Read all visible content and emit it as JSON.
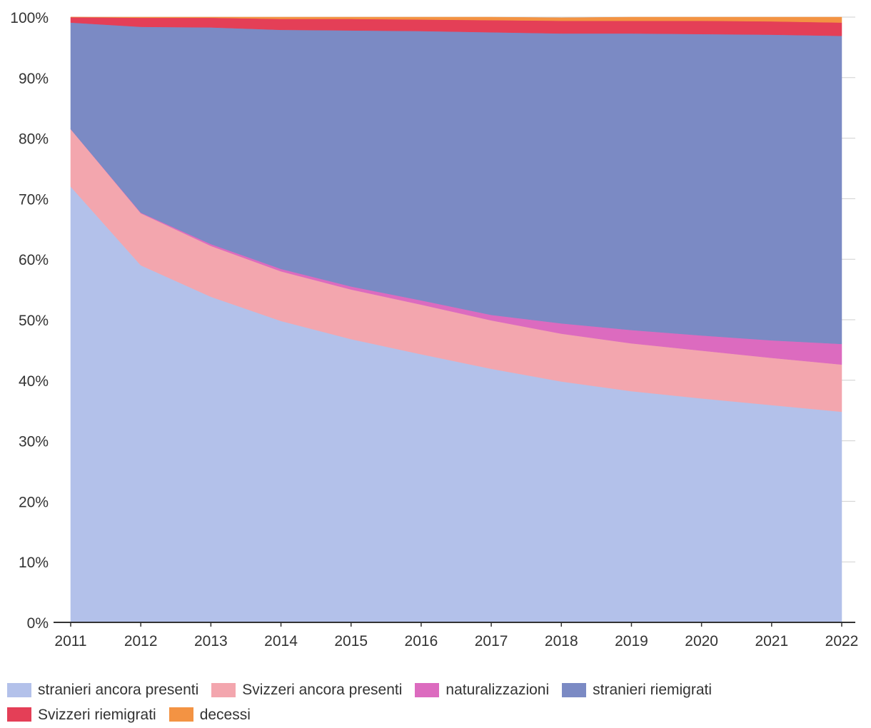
{
  "chart_data": {
    "type": "area",
    "stacked": true,
    "title": "",
    "xlabel": "",
    "ylabel": "",
    "ylim": [
      0,
      100
    ],
    "y_ticks": [
      0,
      10,
      20,
      30,
      40,
      50,
      60,
      70,
      80,
      90,
      100
    ],
    "y_tick_labels": [
      "0%",
      "10%",
      "20%",
      "30%",
      "40%",
      "50%",
      "60%",
      "70%",
      "80%",
      "90%",
      "100%"
    ],
    "x": [
      "2011",
      "2012",
      "2013",
      "2014",
      "2015",
      "2016",
      "2017",
      "2018",
      "2019",
      "2020",
      "2021",
      "2022"
    ],
    "grid": true,
    "legend_position": "bottom",
    "series": [
      {
        "name": "stranieri ancora presenti",
        "color": "#b3c1ea",
        "values": [
          72.0,
          59.0,
          53.8,
          49.8,
          46.8,
          44.3,
          41.9,
          39.8,
          38.2,
          37.0,
          35.9,
          34.8
        ]
      },
      {
        "name": "Svizzeri ancora presenti",
        "color": "#f3a6ae",
        "values": [
          9.5,
          8.6,
          8.4,
          8.2,
          8.2,
          8.2,
          8.0,
          7.9,
          7.9,
          7.9,
          7.8,
          7.8
        ]
      },
      {
        "name": "naturalizzazioni",
        "color": "#dc6bbf",
        "values": [
          0.0,
          0.1,
          0.3,
          0.4,
          0.5,
          0.7,
          0.9,
          1.7,
          2.2,
          2.5,
          2.9,
          3.4
        ]
      },
      {
        "name": "stranieri riemigrati",
        "color": "#7b8ac4",
        "values": [
          17.6,
          30.7,
          35.8,
          39.5,
          42.3,
          44.5,
          46.7,
          47.9,
          49.0,
          49.8,
          50.5,
          50.9
        ]
      },
      {
        "name": "Svizzeri riemigrati",
        "color": "#e43f57",
        "values": [
          0.9,
          1.5,
          1.6,
          1.8,
          1.9,
          1.9,
          2.0,
          2.1,
          2.1,
          2.2,
          2.2,
          2.2
        ]
      },
      {
        "name": "decessi",
        "color": "#f39343",
        "values": [
          0.0,
          0.1,
          0.1,
          0.3,
          0.3,
          0.4,
          0.5,
          0.5,
          0.6,
          0.6,
          0.7,
          0.9
        ]
      }
    ]
  }
}
